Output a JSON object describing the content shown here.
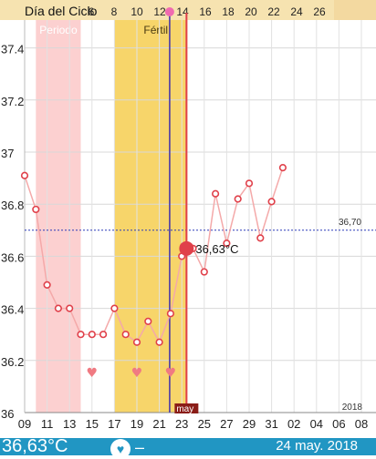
{
  "header": {
    "title": "Día del Ciclo"
  },
  "bottom_bar": {
    "temperature": "36,63°C",
    "dash": "–",
    "date": "24 may. 2018"
  },
  "colors": {
    "period": "#fcd0d0",
    "fertile": "#f7d56a",
    "top_bar": "#f6e3b0",
    "line": "#f4a9a9",
    "point": "#e0404a",
    "today_line": "#e0404a",
    "ovulation_line": "#4b3aa8",
    "coverline": "#2d3bb8",
    "heart": "#f07a82",
    "bottom_bar": "#2196c3",
    "month_label_bg": "#8a1d18"
  },
  "chart_data": {
    "type": "line",
    "title": "",
    "xlabel": "",
    "ylabel": "",
    "ylim": [
      36.0,
      37.5
    ],
    "y_ticks": [
      "36",
      "36.2",
      "36.4",
      "36.6",
      "36.8",
      "37",
      "37.2",
      "37.4"
    ],
    "y_tick_values": [
      36.0,
      36.2,
      36.4,
      36.6,
      36.8,
      37.0,
      37.2,
      37.4
    ],
    "x_date_ticks": [
      "09",
      "11",
      "13",
      "15",
      "17",
      "19",
      "21",
      "23",
      "25",
      "27",
      "29",
      "31",
      "02",
      "04",
      "06",
      "08"
    ],
    "cycle_day_ticks": [
      "6",
      "8",
      "10",
      "12",
      "14",
      "16",
      "18",
      "20",
      "22",
      "24",
      "26"
    ],
    "cycle_day_values": [
      6,
      8,
      10,
      12,
      14,
      16,
      18,
      20,
      22,
      24,
      26
    ],
    "month_label": "may",
    "year_label": "2018",
    "period": {
      "label": "Periodo",
      "start_day": 10,
      "end_day": 14
    },
    "fertile": {
      "label": "Fértil",
      "start_day": 17,
      "end_day": 23.5
    },
    "ovulation_day": 22,
    "today_day": 23.5,
    "coverline": {
      "value": 36.7,
      "label": "36,70"
    },
    "hearts_days": [
      15,
      19,
      22
    ],
    "series": [
      {
        "x_days": [
          9,
          10,
          11,
          12,
          13,
          14,
          15,
          16,
          17,
          18,
          19,
          20,
          21,
          22,
          23,
          24,
          25,
          26,
          27,
          28,
          29,
          30,
          31,
          32
        ],
        "values": [
          36.91,
          36.78,
          36.49,
          36.4,
          36.4,
          36.3,
          36.3,
          36.3,
          36.4,
          36.3,
          36.27,
          36.35,
          36.27,
          36.38,
          36.6,
          36.63,
          36.54,
          36.84,
          36.65,
          36.82,
          36.88,
          36.67,
          36.81,
          36.94
        ]
      }
    ],
    "highlight": {
      "day": 23.5,
      "value": 36.63,
      "label": "36,63°C"
    }
  }
}
